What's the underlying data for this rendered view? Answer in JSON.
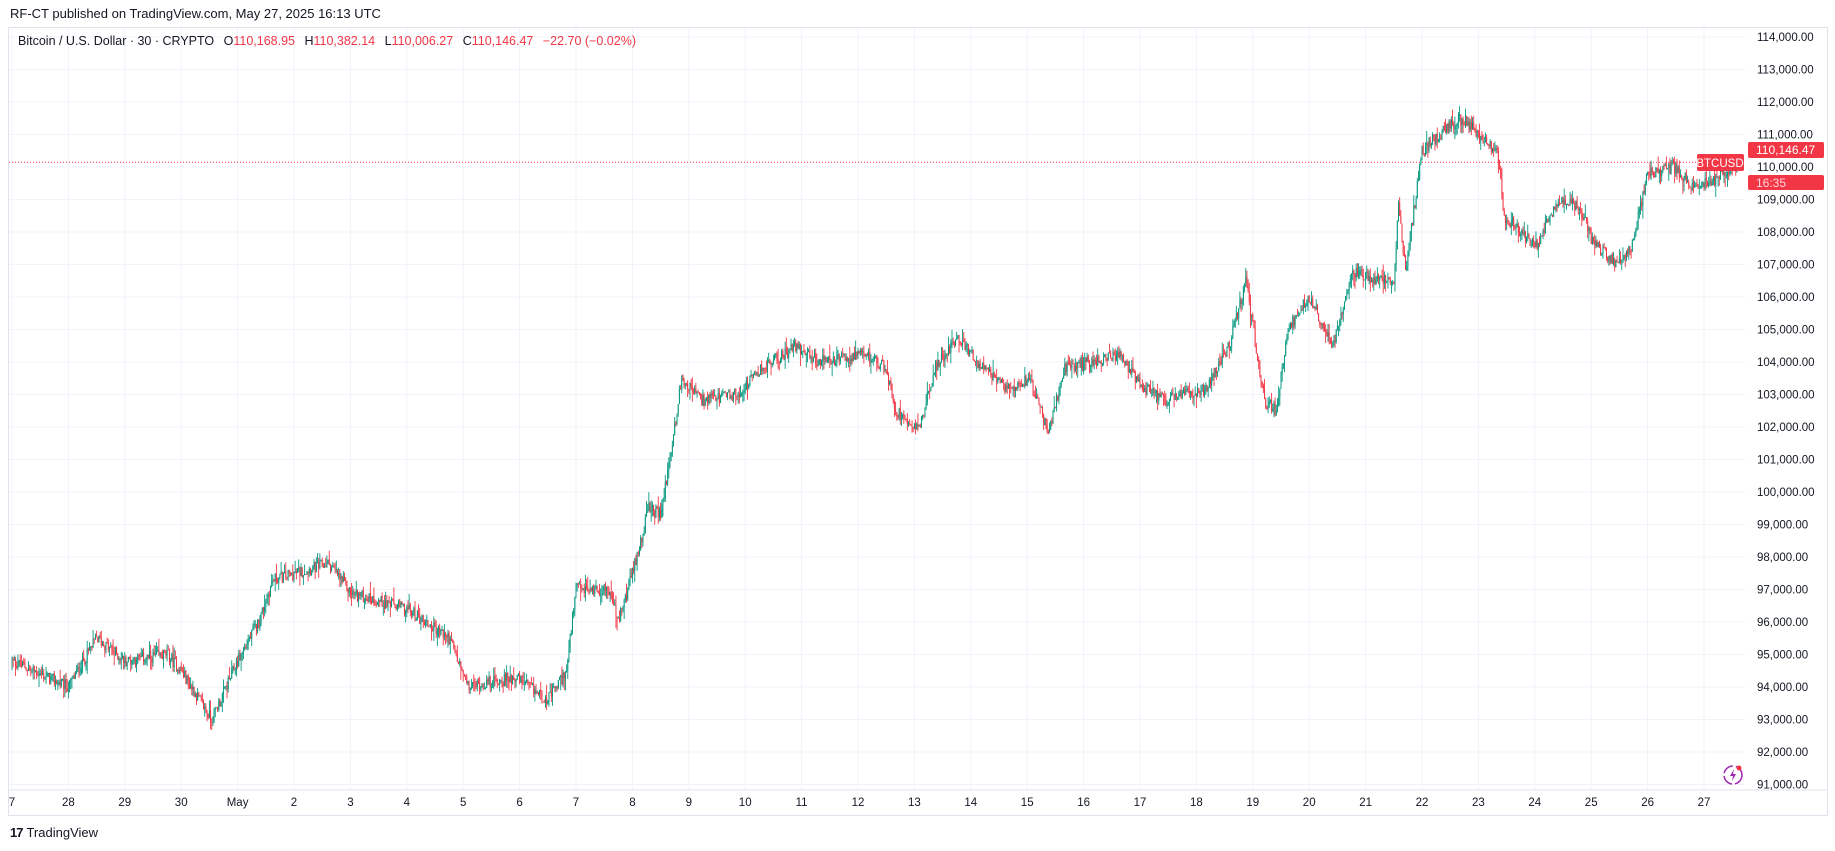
{
  "published": "RF-CT published on TradingView.com, May 27, 2025 16:13 UTC",
  "legend": {
    "symbol": "Bitcoin / U.S. Dollar · 30 · CRYPTO",
    "o_label": "O",
    "o": "110,168.95",
    "h_label": "H",
    "h": "110,382.14",
    "l_label": "L",
    "l": "110,006.27",
    "c_label": "C",
    "c": "110,146.47",
    "change": "−22.70 (−0.02%)"
  },
  "price_tag": {
    "symbol": "BTCUSD",
    "price": "110,146.47",
    "countdown": "16:35"
  },
  "footer": {
    "brand": "TradingView"
  },
  "colors": {
    "up": "#089981",
    "down": "#f23645",
    "grid": "#f0f3fa"
  },
  "chart_data": {
    "type": "candlestick",
    "interval": "30 min",
    "grid": true,
    "y_ticks": [
      "114,000.00",
      "113,000.00",
      "112,000.00",
      "111,000.00",
      "110,000.00",
      "109,000.00",
      "108,000.00",
      "107,000.00",
      "106,000.00",
      "105,000.00",
      "104,000.00",
      "103,000.00",
      "102,000.00",
      "101,000.00",
      "100,000.00",
      "99,000.00",
      "98,000.00",
      "97,000.00",
      "96,000.00",
      "95,000.00",
      "94,000.00",
      "93,000.00",
      "92,000.00",
      "91,000.00"
    ],
    "ylim": [
      91000,
      114000
    ],
    "x_ticks": [
      "7",
      "28",
      "29",
      "30",
      "May",
      "2",
      "3",
      "4",
      "5",
      "6",
      "7",
      "8",
      "9",
      "10",
      "11",
      "12",
      "13",
      "14",
      "15",
      "16",
      "17",
      "18",
      "19",
      "20",
      "21",
      "22",
      "23",
      "24",
      "25",
      "26",
      "27"
    ],
    "xlim": [
      "2025-04-27 00:00",
      "2025-05-27 16:00"
    ],
    "approx_close_path": [
      [
        "2025-04-27 00:00",
        94800
      ],
      [
        "2025-04-28 00:00",
        94000
      ],
      [
        "2025-04-28 12:00",
        95500
      ],
      [
        "2025-04-29 00:00",
        94800
      ],
      [
        "2025-04-29 18:00",
        95000
      ],
      [
        "2025-04-30 00:00",
        94500
      ],
      [
        "2025-04-30 13:00",
        93000
      ],
      [
        "2025-05-01 00:00",
        94800
      ],
      [
        "2025-05-01 09:00",
        96000
      ],
      [
        "2025-05-01 15:00",
        97300
      ],
      [
        "2025-05-02 15:00",
        97800
      ],
      [
        "2025-05-03 00:00",
        96900
      ],
      [
        "2025-05-04 00:00",
        96400
      ],
      [
        "2025-05-04 18:00",
        95500
      ],
      [
        "2025-05-05 02:00",
        94000
      ],
      [
        "2025-05-05 22:00",
        94300
      ],
      [
        "2025-05-06 12:00",
        93600
      ],
      [
        "2025-05-06 20:00",
        94500
      ],
      [
        "2025-05-07 00:00",
        97000
      ],
      [
        "2025-05-07 14:00",
        97000
      ],
      [
        "2025-05-07 18:00",
        96000
      ],
      [
        "2025-05-08 00:00",
        97500
      ],
      [
        "2025-05-08 07:00",
        99500
      ],
      [
        "2025-05-08 12:00",
        99300
      ],
      [
        "2025-05-08 17:00",
        101500
      ],
      [
        "2025-05-08 21:00",
        103500
      ],
      [
        "2025-05-09 06:00",
        102800
      ],
      [
        "2025-05-09 21:00",
        103000
      ],
      [
        "2025-05-10 07:00",
        103800
      ],
      [
        "2025-05-10 22:00",
        104500
      ],
      [
        "2025-05-11 07:00",
        104000
      ],
      [
        "2025-05-12 04:00",
        104200
      ],
      [
        "2025-05-12 12:00",
        103800
      ],
      [
        "2025-05-12 16:00",
        102500
      ],
      [
        "2025-05-13 02:00",
        102000
      ],
      [
        "2025-05-13 09:00",
        103800
      ],
      [
        "2025-05-13 18:00",
        104800
      ],
      [
        "2025-05-14 05:00",
        103800
      ],
      [
        "2025-05-14 15:00",
        103200
      ],
      [
        "2025-05-15 01:00",
        103500
      ],
      [
        "2025-05-15 09:00",
        101800
      ],
      [
        "2025-05-15 16:00",
        103800
      ],
      [
        "2025-05-16 02:00",
        104000
      ],
      [
        "2025-05-16 15:00",
        104200
      ],
      [
        "2025-05-17 00:00",
        103300
      ],
      [
        "2025-05-17 10:00",
        102800
      ],
      [
        "2025-05-18 04:00",
        103200
      ],
      [
        "2025-05-18 14:00",
        104500
      ],
      [
        "2025-05-18 21:00",
        106500
      ],
      [
        "2025-05-19 05:00",
        102800
      ],
      [
        "2025-05-19 10:00",
        102500
      ],
      [
        "2025-05-19 15:00",
        105000
      ],
      [
        "2025-05-20 00:00",
        106000
      ],
      [
        "2025-05-20 10:00",
        104500
      ],
      [
        "2025-05-20 18:00",
        106800
      ],
      [
        "2025-05-21 04:00",
        106500
      ],
      [
        "2025-05-21 12:00",
        106500
      ],
      [
        "2025-05-21 14:00",
        108800
      ],
      [
        "2025-05-21 17:00",
        106800
      ],
      [
        "2025-05-22 00:00",
        110500
      ],
      [
        "2025-05-22 07:00",
        111000
      ],
      [
        "2025-05-22 17:00",
        111500
      ],
      [
        "2025-05-23 03:00",
        110800
      ],
      [
        "2025-05-23 08:00",
        110500
      ],
      [
        "2025-05-23 11:00",
        108500
      ],
      [
        "2025-05-23 18:00",
        108000
      ],
      [
        "2025-05-24 00:00",
        107500
      ],
      [
        "2025-05-24 10:00",
        109000
      ],
      [
        "2025-05-24 19:00",
        108800
      ],
      [
        "2025-05-25 00:00",
        107800
      ],
      [
        "2025-05-25 10:00",
        107000
      ],
      [
        "2025-05-25 17:00",
        107500
      ],
      [
        "2025-05-26 00:00",
        109800
      ],
      [
        "2025-05-26 11:00",
        110000
      ],
      [
        "2025-05-26 18:00",
        109500
      ],
      [
        "2025-05-27 02:00",
        109500
      ],
      [
        "2025-05-27 16:00",
        110146.47
      ]
    ],
    "last_price": 110146.47
  }
}
